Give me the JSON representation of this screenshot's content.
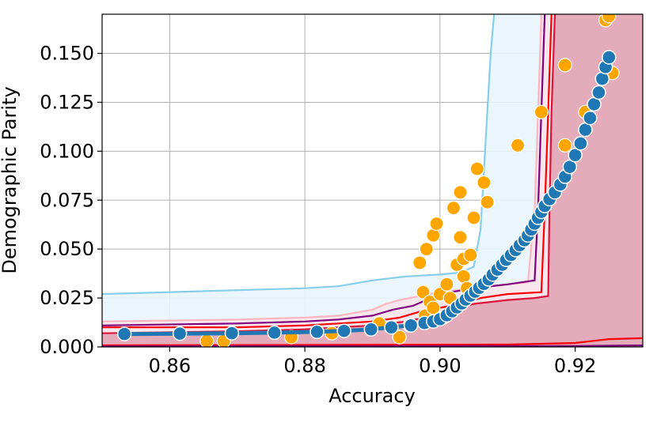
{
  "chart_data": {
    "type": "scatter",
    "title": "",
    "xlabel": "Accuracy",
    "ylabel": "Demographic Parity",
    "xlim": [
      0.85,
      0.93
    ],
    "ylim": [
      0.0,
      0.17
    ],
    "grid": true,
    "legend": "none",
    "x_ticks": [
      {
        "value": 0.86,
        "label": "0.86"
      },
      {
        "value": 0.88,
        "label": "0.88"
      },
      {
        "value": 0.9,
        "label": "0.90"
      },
      {
        "value": 0.92,
        "label": "0.92"
      }
    ],
    "y_ticks": [
      {
        "value": 0.0,
        "label": "0.000"
      },
      {
        "value": 0.025,
        "label": "0.025"
      },
      {
        "value": 0.05,
        "label": "0.050"
      },
      {
        "value": 0.075,
        "label": "0.075"
      },
      {
        "value": 0.1,
        "label": "0.100"
      },
      {
        "value": 0.125,
        "label": "0.125"
      },
      {
        "value": 0.15,
        "label": "0.150"
      }
    ],
    "colors": {
      "lightblue": "#87ceeb",
      "lightblue_fill": "#e8f5fb",
      "pink": "#ffb6c1",
      "pink_fill": "#f9e5ea",
      "purple": "#800080",
      "red": "#ff0000",
      "crimson": "#dc143c",
      "crimson_fill": "#e3a8b7",
      "orange": "#ffa500",
      "steelblue": "#1f77b4"
    },
    "regions": [
      {
        "color": "lightblue",
        "points": [
          [
            0.85,
            0.027
          ],
          [
            0.87,
            0.029
          ],
          [
            0.88,
            0.03
          ],
          [
            0.885,
            0.031
          ],
          [
            0.89,
            0.034
          ],
          [
            0.895,
            0.036
          ],
          [
            0.9,
            0.037
          ],
          [
            0.903,
            0.038
          ],
          [
            0.905,
            0.041
          ],
          [
            0.906,
            0.06
          ],
          [
            0.9065,
            0.09
          ],
          [
            0.907,
            0.12
          ],
          [
            0.9075,
            0.15
          ],
          [
            0.908,
            0.17
          ]
        ]
      },
      {
        "color": "pink",
        "points": [
          [
            0.85,
            0.013
          ],
          [
            0.87,
            0.014
          ],
          [
            0.88,
            0.015
          ],
          [
            0.885,
            0.016
          ],
          [
            0.89,
            0.019
          ],
          [
            0.892,
            0.022
          ],
          [
            0.894,
            0.024
          ],
          [
            0.897,
            0.026
          ],
          [
            0.9,
            0.028
          ],
          [
            0.905,
            0.03
          ],
          [
            0.91,
            0.032
          ],
          [
            0.913,
            0.033
          ],
          [
            0.914,
            0.07
          ],
          [
            0.9145,
            0.12
          ],
          [
            0.915,
            0.17
          ]
        ]
      },
      {
        "color": "purple",
        "points": [
          [
            0.85,
            0.011
          ],
          [
            0.87,
            0.012
          ],
          [
            0.88,
            0.013
          ],
          [
            0.885,
            0.014
          ],
          [
            0.89,
            0.016
          ],
          [
            0.893,
            0.019
          ],
          [
            0.896,
            0.021
          ],
          [
            0.898,
            0.024
          ],
          [
            0.9,
            0.027
          ],
          [
            0.905,
            0.03
          ],
          [
            0.91,
            0.032
          ],
          [
            0.914,
            0.034
          ],
          [
            0.9145,
            0.07
          ],
          [
            0.915,
            0.12
          ],
          [
            0.9155,
            0.17
          ]
        ]
      },
      {
        "color": "red",
        "points": [
          [
            0.85,
            0.01
          ],
          [
            0.87,
            0.01
          ],
          [
            0.88,
            0.011
          ],
          [
            0.885,
            0.012
          ],
          [
            0.89,
            0.013
          ],
          [
            0.894,
            0.015
          ],
          [
            0.897,
            0.018
          ],
          [
            0.9,
            0.02
          ],
          [
            0.903,
            0.022
          ],
          [
            0.906,
            0.025
          ],
          [
            0.91,
            0.027
          ],
          [
            0.915,
            0.028
          ],
          [
            0.9155,
            0.07
          ],
          [
            0.916,
            0.12
          ],
          [
            0.9165,
            0.17
          ]
        ]
      },
      {
        "color": "crimson",
        "points": [
          [
            0.85,
            0.007
          ],
          [
            0.87,
            0.008
          ],
          [
            0.88,
            0.009
          ],
          [
            0.885,
            0.01
          ],
          [
            0.89,
            0.011
          ],
          [
            0.895,
            0.013
          ],
          [
            0.899,
            0.016
          ],
          [
            0.902,
            0.019
          ],
          [
            0.905,
            0.022
          ],
          [
            0.91,
            0.024
          ],
          [
            0.914,
            0.025
          ],
          [
            0.916,
            0.026
          ],
          [
            0.9162,
            0.07
          ],
          [
            0.9165,
            0.12
          ],
          [
            0.917,
            0.17
          ]
        ]
      }
    ],
    "bottom_lines": [
      {
        "color": "red",
        "points": [
          [
            0.85,
            0.0008
          ],
          [
            0.91,
            0.0012
          ],
          [
            0.92,
            0.002
          ],
          [
            0.925,
            0.004
          ],
          [
            0.93,
            0.0045
          ]
        ]
      },
      {
        "color": "purple",
        "points": [
          [
            0.85,
            0.0003
          ],
          [
            0.92,
            0.0005
          ],
          [
            0.93,
            0.0008
          ]
        ]
      }
    ],
    "orange_points": [
      [
        0.8655,
        0.003
      ],
      [
        0.868,
        0.003
      ],
      [
        0.878,
        0.005
      ],
      [
        0.884,
        0.007
      ],
      [
        0.891,
        0.012
      ],
      [
        0.894,
        0.005
      ],
      [
        0.8955,
        0.011
      ],
      [
        0.897,
        0.043
      ],
      [
        0.8975,
        0.028
      ],
      [
        0.8978,
        0.016
      ],
      [
        0.898,
        0.05
      ],
      [
        0.8985,
        0.023
      ],
      [
        0.899,
        0.02
      ],
      [
        0.899,
        0.057
      ],
      [
        0.8995,
        0.063
      ],
      [
        0.9,
        0.027
      ],
      [
        0.9005,
        0.015
      ],
      [
        0.901,
        0.032
      ],
      [
        0.9015,
        0.025
      ],
      [
        0.902,
        0.071
      ],
      [
        0.9025,
        0.042
      ],
      [
        0.903,
        0.079
      ],
      [
        0.903,
        0.056
      ],
      [
        0.9035,
        0.045
      ],
      [
        0.9035,
        0.036
      ],
      [
        0.904,
        0.03
      ],
      [
        0.9045,
        0.047
      ],
      [
        0.905,
        0.066
      ],
      [
        0.9055,
        0.091
      ],
      [
        0.9065,
        0.084
      ],
      [
        0.907,
        0.074
      ],
      [
        0.9115,
        0.103
      ],
      [
        0.915,
        0.12
      ],
      [
        0.9185,
        0.144
      ],
      [
        0.9185,
        0.103
      ],
      [
        0.9215,
        0.12
      ],
      [
        0.9245,
        0.167
      ],
      [
        0.925,
        0.169
      ],
      [
        0.9255,
        0.14
      ]
    ],
    "series": [
      {
        "color": "steelblue",
        "points": [
          [
            0.8533,
            0.0066
          ],
          [
            0.8615,
            0.0068
          ],
          [
            0.8692,
            0.007
          ],
          [
            0.8755,
            0.0073
          ],
          [
            0.8818,
            0.0077
          ],
          [
            0.8858,
            0.0082
          ],
          [
            0.8898,
            0.009
          ],
          [
            0.8928,
            0.01
          ],
          [
            0.8957,
            0.011
          ],
          [
            0.8977,
            0.0122
          ],
          [
            0.899,
            0.013
          ],
          [
            0.9,
            0.0142
          ],
          [
            0.901,
            0.0162
          ],
          [
            0.9018,
            0.0182
          ],
          [
            0.9025,
            0.0202
          ],
          [
            0.9032,
            0.0222
          ],
          [
            0.9038,
            0.0242
          ],
          [
            0.9045,
            0.0262
          ],
          [
            0.9052,
            0.0282
          ],
          [
            0.9058,
            0.0302
          ],
          [
            0.9065,
            0.0322
          ],
          [
            0.9072,
            0.0345
          ],
          [
            0.9078,
            0.037
          ],
          [
            0.9085,
            0.0395
          ],
          [
            0.9092,
            0.042
          ],
          [
            0.9098,
            0.0445
          ],
          [
            0.9105,
            0.047
          ],
          [
            0.9112,
            0.0495
          ],
          [
            0.9118,
            0.052
          ],
          [
            0.9125,
            0.0545
          ],
          [
            0.913,
            0.057
          ],
          [
            0.9135,
            0.06
          ],
          [
            0.914,
            0.063
          ],
          [
            0.9145,
            0.066
          ],
          [
            0.915,
            0.069
          ],
          [
            0.9155,
            0.072
          ],
          [
            0.9162,
            0.0755
          ],
          [
            0.917,
            0.079
          ],
          [
            0.9178,
            0.083
          ],
          [
            0.9185,
            0.087
          ],
          [
            0.9192,
            0.092
          ],
          [
            0.92,
            0.098
          ],
          [
            0.9208,
            0.104
          ],
          [
            0.9215,
            0.111
          ],
          [
            0.9222,
            0.117
          ],
          [
            0.9228,
            0.124
          ],
          [
            0.9235,
            0.13
          ],
          [
            0.924,
            0.137
          ],
          [
            0.9245,
            0.143
          ],
          [
            0.925,
            0.148
          ]
        ]
      }
    ]
  }
}
